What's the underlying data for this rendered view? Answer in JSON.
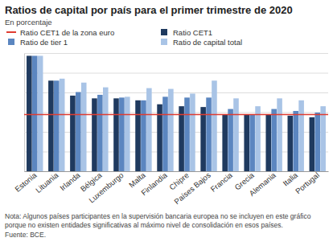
{
  "chart_data": {
    "type": "bar",
    "title": "Ratios de capital por país para el primer trimestre de 2020",
    "subtitle": "En porcentaje",
    "categories": [
      "Estonia",
      "Lituania",
      "Irlanda",
      "Bélgica",
      "Luxemburgo",
      "Malta",
      "Finlandia",
      "Chipre",
      "Países Bajos",
      "Francia",
      "Grecia",
      "Alemania",
      "Italia",
      "Portugal"
    ],
    "series": [
      {
        "name": "Ratio CET1",
        "color": "#1f3a5f",
        "values": [
          29.3,
          23.0,
          19.2,
          18.5,
          18.5,
          18.0,
          17.0,
          16.5,
          16.3,
          14.4,
          14.4,
          14.4,
          14.1,
          13.7
        ]
      },
      {
        "name": "Ratio de tier 1",
        "color": "#5b86c0",
        "values": [
          29.3,
          23.0,
          20.1,
          19.4,
          18.7,
          18.0,
          18.9,
          18.7,
          18.7,
          15.8,
          14.4,
          15.8,
          15.3,
          14.9
        ]
      },
      {
        "name": "Ratio de capital total",
        "color": "#a9c4e6",
        "values": [
          29.3,
          23.5,
          22.5,
          21.3,
          18.9,
          21.1,
          20.9,
          19.7,
          23.0,
          18.5,
          16.5,
          18.5,
          18.0,
          16.5
        ]
      }
    ],
    "reference_lines": [
      {
        "name": "Ratio CET1 de la zona euro",
        "value": 14.4,
        "color": "#e03c31"
      }
    ],
    "ylim": [
      0,
      30
    ],
    "yticks": [
      0,
      5,
      10,
      15,
      20,
      25,
      30
    ],
    "grid": true,
    "tick_labels": "x",
    "note": "Nota: Algunos países participantes en la supervisión bancaria europea no se incluyen en este gráfico porque no existen entidades significativas al máximo nivel de consolidación en esos países.",
    "source": "Fuente: BCE."
  }
}
